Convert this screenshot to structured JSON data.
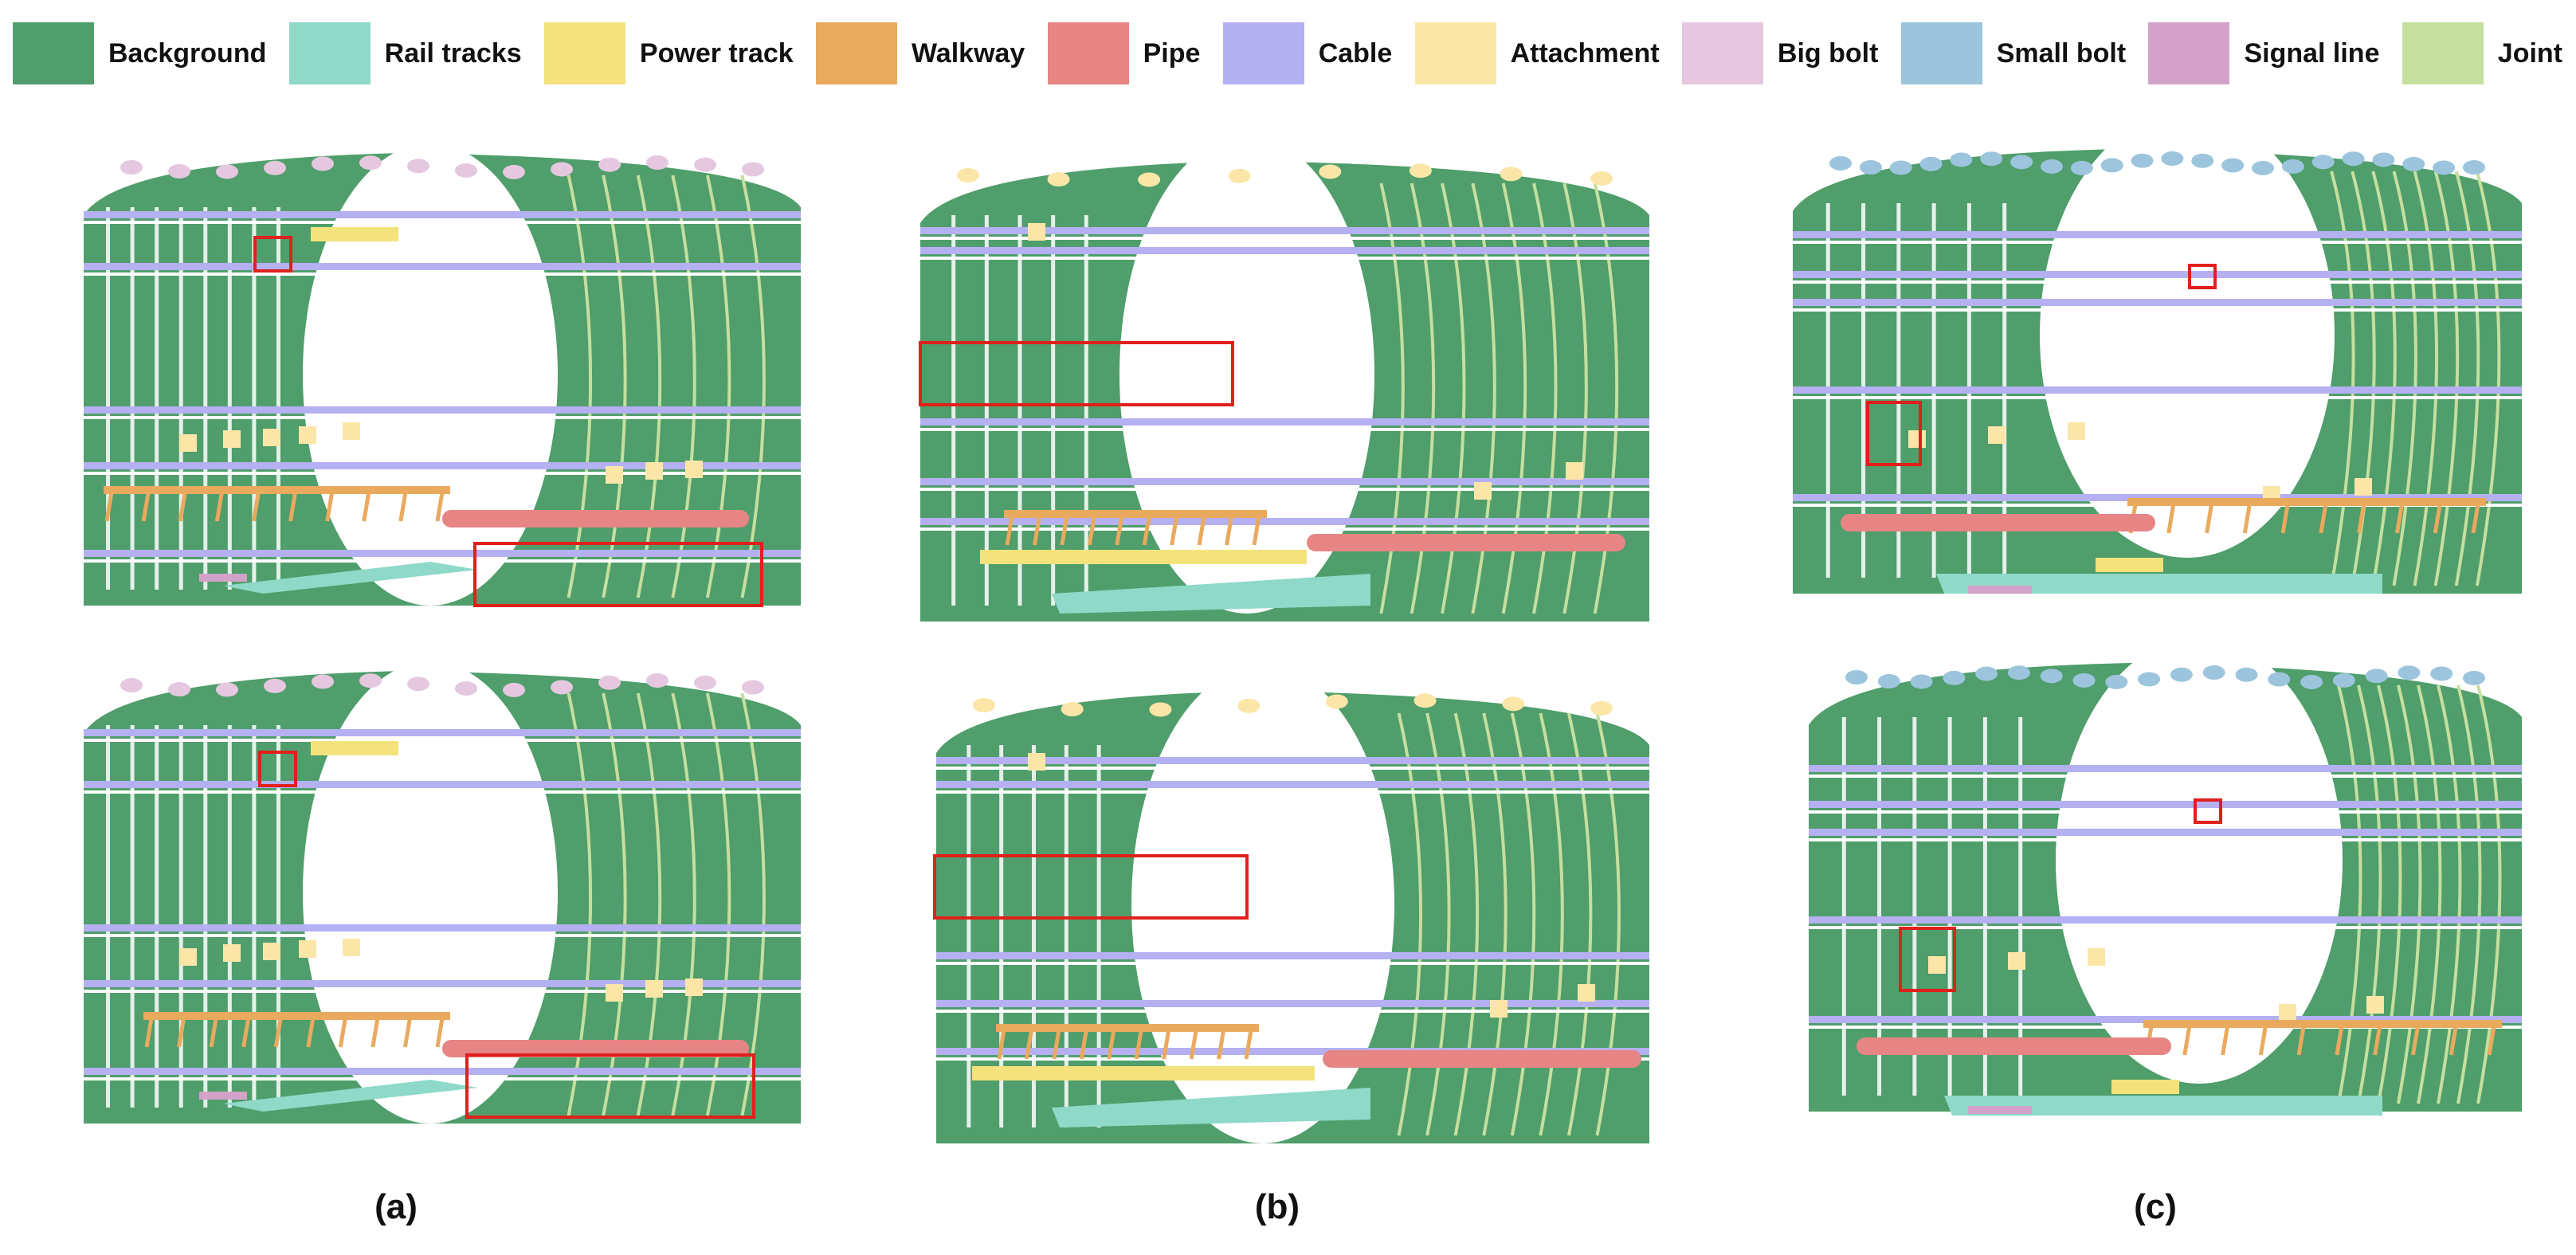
{
  "legend": [
    {
      "label": "Background",
      "color": "#4f9e6b"
    },
    {
      "label": "Rail tracks",
      "color": "#8fd9c9"
    },
    {
      "label": "Power track",
      "color": "#f4e27c"
    },
    {
      "label": "Walkway",
      "color": "#e9aa5e"
    },
    {
      "label": "Pipe",
      "color": "#e78484"
    },
    {
      "label": "Cable",
      "color": "#b4b0f2"
    },
    {
      "label": "Attachment",
      "color": "#fbe6a8"
    },
    {
      "label": "Big bolt",
      "color": "#e5c8e0"
    },
    {
      "label": "Small bolt",
      "color": "#9cc5dd"
    },
    {
      "label": "Signal line",
      "color": "#d3a2c8"
    },
    {
      "label": "Joint",
      "color": "#c5df9f"
    }
  ],
  "panels": [
    {
      "label": "(a)"
    },
    {
      "label": "(b)"
    },
    {
      "label": "(c)"
    }
  ],
  "highlight_color": "#e0201c"
}
